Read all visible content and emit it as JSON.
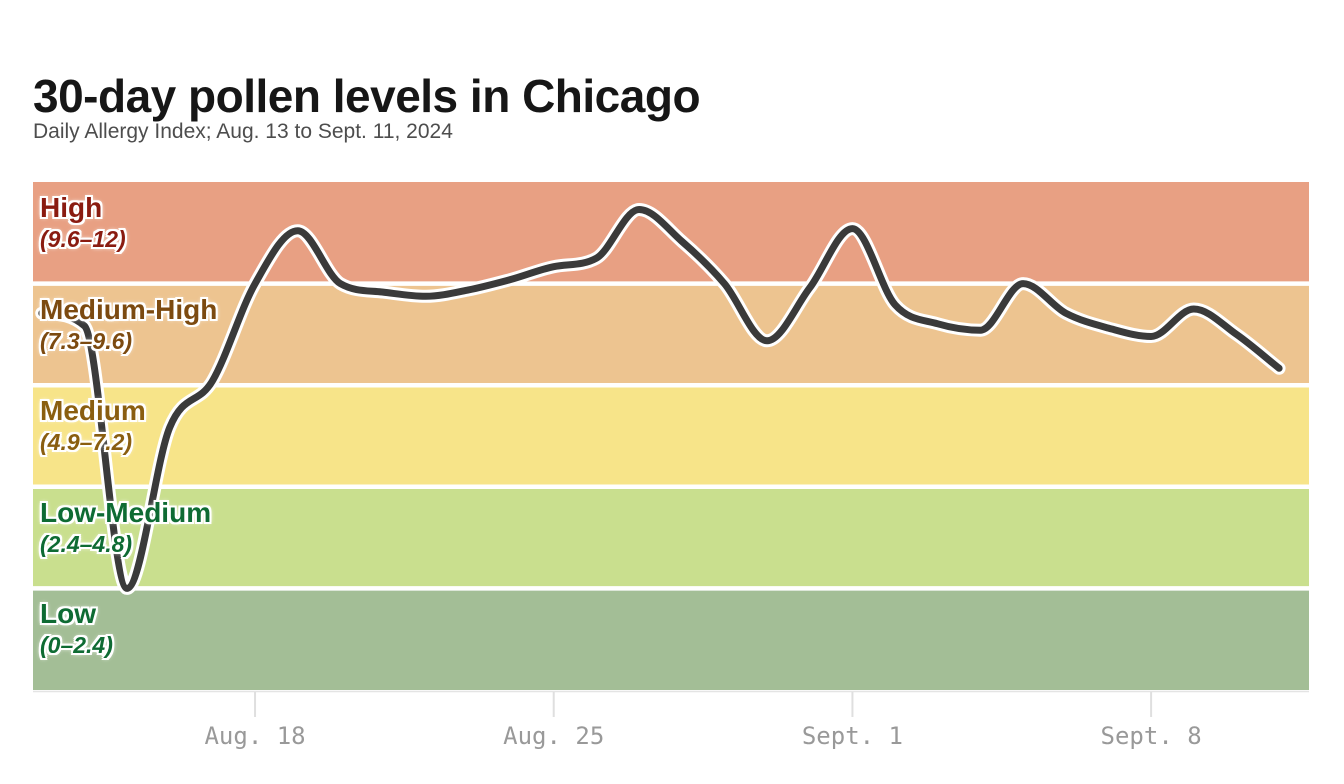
{
  "header": {
    "title": "30-day pollen levels in Chicago",
    "subtitle": "Daily Allergy Index; Aug. 13 to Sept. 11, 2024"
  },
  "bands": [
    {
      "label": "High",
      "range": "(9.6–12)",
      "vmin": 9.6,
      "vmax": 12,
      "fill": "#E8A083",
      "text_color": "#8A1B10"
    },
    {
      "label": "Medium-High",
      "range": "(7.3–9.6)",
      "vmin": 7.2,
      "vmax": 9.6,
      "fill": "#EDC490",
      "text_color": "#7C4A10"
    },
    {
      "label": "Medium",
      "range": "(4.9–7.2)",
      "vmin": 4.8,
      "vmax": 7.2,
      "fill": "#F7E489",
      "text_color": "#8A5E10"
    },
    {
      "label": "Low-Medium",
      "range": "(2.4–4.8)",
      "vmin": 2.4,
      "vmax": 4.8,
      "fill": "#C9DF8E",
      "text_color": "#0E6B33"
    },
    {
      "label": "Low",
      "range": "(0–2.4)",
      "vmin": 0,
      "vmax": 2.4,
      "fill": "#A3BE96",
      "text_color": "#0E6B33"
    }
  ],
  "x_axis": {
    "ticks": [
      {
        "label": "Aug. 18",
        "day_index": 5
      },
      {
        "label": "Aug. 25",
        "day_index": 12
      },
      {
        "label": "Sept. 1",
        "day_index": 19
      },
      {
        "label": "Sept. 8",
        "day_index": 26
      }
    ],
    "axis_line_color": "#E4E4E4",
    "tick_color": "#DFDFDF",
    "tick_label_color": "#999999"
  },
  "line": {
    "color": "#3A3A3A",
    "casing_color": "#FFFFFF"
  },
  "chart_data": {
    "type": "line",
    "title": "30-day pollen levels in Chicago",
    "subtitle": "Daily Allergy Index; Aug. 13 to Sept. 11, 2024",
    "ylabel": "Daily Allergy Index",
    "ylim": [
      0,
      12
    ],
    "grid": false,
    "legend": false,
    "x": [
      "Aug. 13",
      "Aug. 14",
      "Aug. 15",
      "Aug. 16",
      "Aug. 17",
      "Aug. 18",
      "Aug. 19",
      "Aug. 20",
      "Aug. 21",
      "Aug. 22",
      "Aug. 23",
      "Aug. 24",
      "Aug. 25",
      "Aug. 26",
      "Aug. 27",
      "Aug. 28",
      "Aug. 29",
      "Aug. 30",
      "Aug. 31",
      "Sept. 1",
      "Sept. 2",
      "Sept. 3",
      "Sept. 4",
      "Sept. 5",
      "Sept. 6",
      "Sept. 7",
      "Sept. 8",
      "Sept. 9",
      "Sept. 10",
      "Sept. 11"
    ],
    "values": [
      8.9,
      8.6,
      2.4,
      6.2,
      7.3,
      9.6,
      10.85,
      9.6,
      9.4,
      9.3,
      9.45,
      9.7,
      10.0,
      10.2,
      11.35,
      10.6,
      9.6,
      8.25,
      9.5,
      10.9,
      9.1,
      8.65,
      8.5,
      9.6,
      8.9,
      8.55,
      8.35,
      9.0,
      8.4,
      7.6
    ],
    "level_bands": [
      {
        "name": "High",
        "range": [
          9.6,
          12
        ]
      },
      {
        "name": "Medium-High",
        "range": [
          7.3,
          9.6
        ]
      },
      {
        "name": "Medium",
        "range": [
          4.9,
          7.2
        ]
      },
      {
        "name": "Low-Medium",
        "range": [
          2.4,
          4.8
        ]
      },
      {
        "name": "Low",
        "range": [
          0,
          2.4
        ]
      }
    ]
  }
}
